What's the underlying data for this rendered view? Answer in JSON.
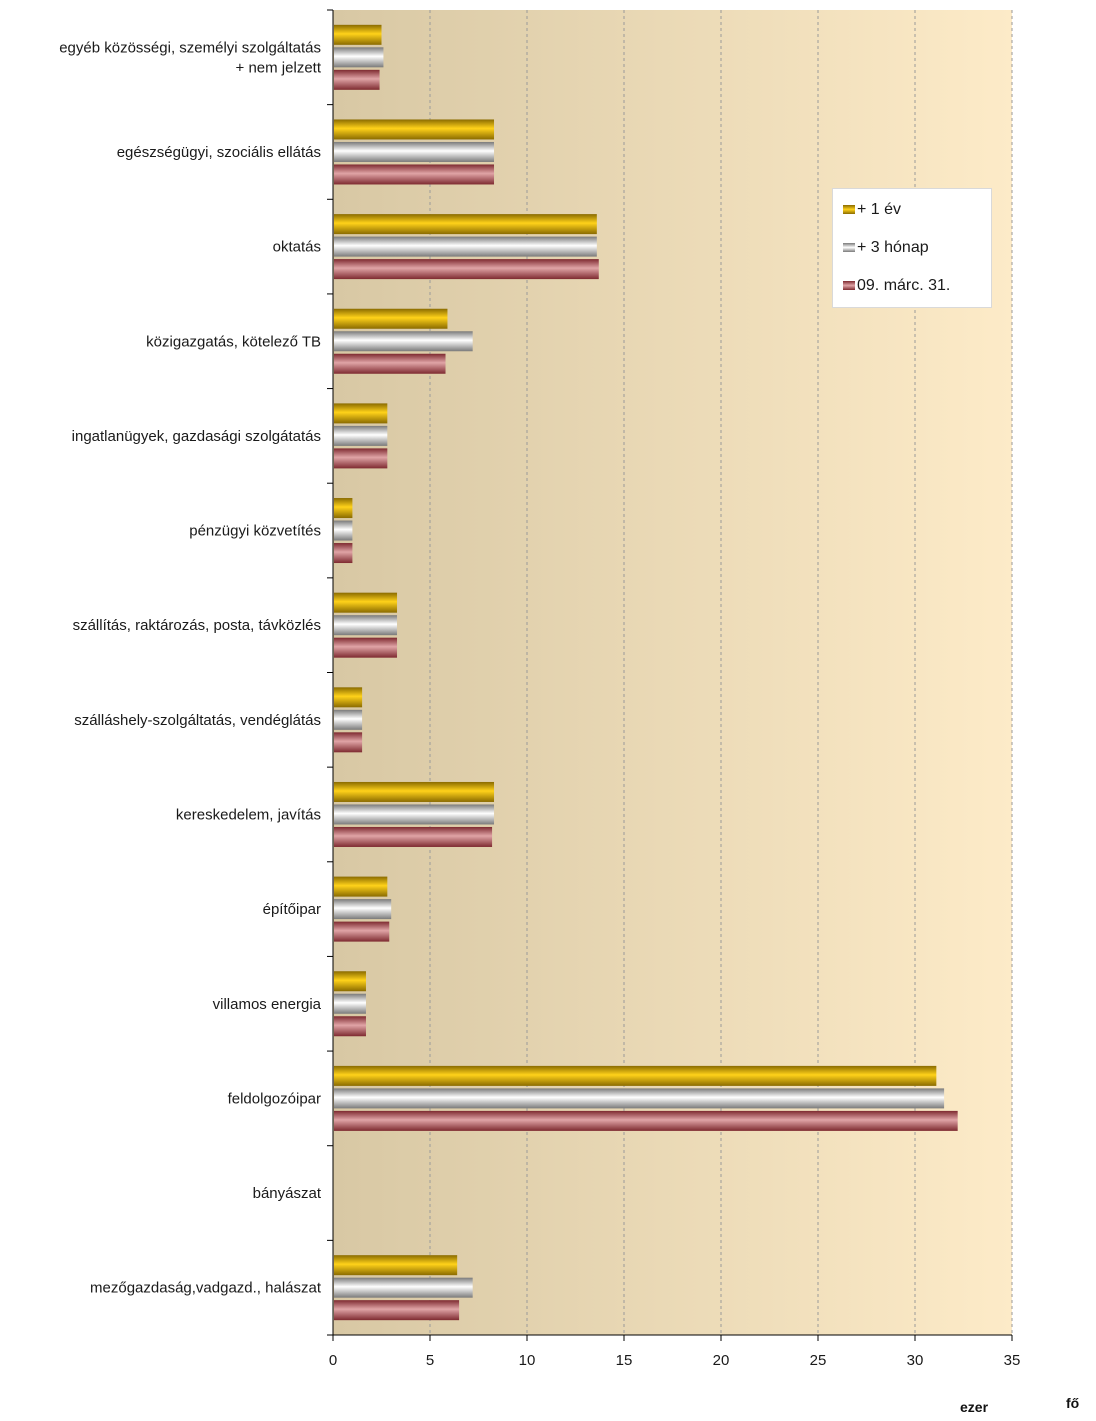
{
  "chart_data": {
    "type": "bar",
    "orientation": "horizontal",
    "categories": [
      "egyéb közösségi, személyi szolgáltatás + nem jelzett",
      "egészségügyi, szociális ellátás",
      "oktatás",
      "közigazgatás, kötelező TB",
      "ingatlanügyek, gazdasági szolgátatás",
      "pénzügyi közvetítés",
      "szállítás, raktározás, posta, távközlés",
      "szálláshely-szolgáltatás, vendéglátás",
      "kereskedelem, javítás",
      "építőipar",
      "villamos energia",
      "feldolgozóipar",
      "bányászat",
      "mezőgazdaság,vadgazd., halászat"
    ],
    "category_label_lines": [
      [
        "egyéb közösségi, személyi szolgáltatás",
        "+ nem jelzett"
      ],
      [
        "egészségügyi, szociális ellátás"
      ],
      [
        "oktatás"
      ],
      [
        "közigazgatás, kötelező TB"
      ],
      [
        "ingatlanügyek, gazdasági szolgátatás"
      ],
      [
        "pénzügyi közvetítés"
      ],
      [
        "szállítás, raktározás, posta, távközlés"
      ],
      [
        "szálláshely-szolgáltatás, vendéglátás"
      ],
      [
        "kereskedelem, javítás"
      ],
      [
        "építőipar"
      ],
      [
        "villamos energia"
      ],
      [
        "feldolgozóipar"
      ],
      [
        "bányászat"
      ],
      [
        "mezőgazdaság,vadgazd., halászat"
      ]
    ],
    "series": [
      {
        "name": "+ 1 év",
        "color": "#e0b000",
        "values": [
          2.5,
          8.3,
          13.6,
          5.9,
          2.8,
          1.0,
          3.3,
          1.5,
          8.3,
          2.8,
          1.7,
          31.1,
          0,
          6.4
        ]
      },
      {
        "name": "+ 3 hónap",
        "color": "#c8c8c8",
        "values": [
          2.6,
          8.3,
          13.6,
          7.2,
          2.8,
          1.0,
          3.3,
          1.5,
          8.3,
          3.0,
          1.7,
          31.5,
          0,
          7.2
        ]
      },
      {
        "name": "09. márc. 31.",
        "color": "#b2575d",
        "values": [
          2.4,
          8.3,
          13.7,
          5.8,
          2.8,
          1.0,
          3.3,
          1.5,
          8.2,
          2.9,
          1.7,
          32.2,
          0,
          6.5
        ]
      }
    ],
    "xlim": [
      0,
      35
    ],
    "xticks": [
      0,
      5,
      10,
      15,
      20,
      25,
      30,
      35
    ],
    "xlabel_parts": [
      "ezer",
      "fő"
    ],
    "grid": "vertical dashed",
    "legend_position": "top-right"
  },
  "colors": {
    "background_left": "#d8c8a4",
    "background_right": "#fdebc8",
    "series_1_dark": "#8a6b00",
    "series_1_light": "#ffd21a",
    "series_2_dark": "#7a7a7a",
    "series_2_light": "#ffffff",
    "series_3_dark": "#7e2a30",
    "series_3_light": "#e0a4a6"
  }
}
